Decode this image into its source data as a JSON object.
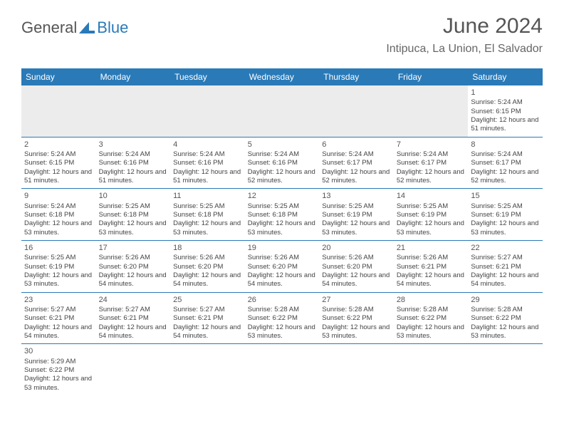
{
  "logo": {
    "general": "General",
    "blue": "Blue",
    "shape_color": "#2a7ab8"
  },
  "title": "June 2024",
  "subtitle": "Intipuca, La Union, El Salvador",
  "colors": {
    "header_bg": "#2a7ab8",
    "header_text": "#ffffff",
    "body_text": "#444444",
    "row_sep": "#2a7ab8",
    "empty_bg": "#ececec"
  },
  "day_headers": [
    "Sunday",
    "Monday",
    "Tuesday",
    "Wednesday",
    "Thursday",
    "Friday",
    "Saturday"
  ],
  "weeks": [
    [
      null,
      null,
      null,
      null,
      null,
      null,
      {
        "n": "1",
        "sr": "5:24 AM",
        "ss": "6:15 PM",
        "dl": "12 hours and 51 minutes."
      }
    ],
    [
      {
        "n": "2",
        "sr": "5:24 AM",
        "ss": "6:15 PM",
        "dl": "12 hours and 51 minutes."
      },
      {
        "n": "3",
        "sr": "5:24 AM",
        "ss": "6:16 PM",
        "dl": "12 hours and 51 minutes."
      },
      {
        "n": "4",
        "sr": "5:24 AM",
        "ss": "6:16 PM",
        "dl": "12 hours and 51 minutes."
      },
      {
        "n": "5",
        "sr": "5:24 AM",
        "ss": "6:16 PM",
        "dl": "12 hours and 52 minutes."
      },
      {
        "n": "6",
        "sr": "5:24 AM",
        "ss": "6:17 PM",
        "dl": "12 hours and 52 minutes."
      },
      {
        "n": "7",
        "sr": "5:24 AM",
        "ss": "6:17 PM",
        "dl": "12 hours and 52 minutes."
      },
      {
        "n": "8",
        "sr": "5:24 AM",
        "ss": "6:17 PM",
        "dl": "12 hours and 52 minutes."
      }
    ],
    [
      {
        "n": "9",
        "sr": "5:24 AM",
        "ss": "6:18 PM",
        "dl": "12 hours and 53 minutes."
      },
      {
        "n": "10",
        "sr": "5:25 AM",
        "ss": "6:18 PM",
        "dl": "12 hours and 53 minutes."
      },
      {
        "n": "11",
        "sr": "5:25 AM",
        "ss": "6:18 PM",
        "dl": "12 hours and 53 minutes."
      },
      {
        "n": "12",
        "sr": "5:25 AM",
        "ss": "6:18 PM",
        "dl": "12 hours and 53 minutes."
      },
      {
        "n": "13",
        "sr": "5:25 AM",
        "ss": "6:19 PM",
        "dl": "12 hours and 53 minutes."
      },
      {
        "n": "14",
        "sr": "5:25 AM",
        "ss": "6:19 PM",
        "dl": "12 hours and 53 minutes."
      },
      {
        "n": "15",
        "sr": "5:25 AM",
        "ss": "6:19 PM",
        "dl": "12 hours and 53 minutes."
      }
    ],
    [
      {
        "n": "16",
        "sr": "5:25 AM",
        "ss": "6:19 PM",
        "dl": "12 hours and 53 minutes."
      },
      {
        "n": "17",
        "sr": "5:26 AM",
        "ss": "6:20 PM",
        "dl": "12 hours and 54 minutes."
      },
      {
        "n": "18",
        "sr": "5:26 AM",
        "ss": "6:20 PM",
        "dl": "12 hours and 54 minutes."
      },
      {
        "n": "19",
        "sr": "5:26 AM",
        "ss": "6:20 PM",
        "dl": "12 hours and 54 minutes."
      },
      {
        "n": "20",
        "sr": "5:26 AM",
        "ss": "6:20 PM",
        "dl": "12 hours and 54 minutes."
      },
      {
        "n": "21",
        "sr": "5:26 AM",
        "ss": "6:21 PM",
        "dl": "12 hours and 54 minutes."
      },
      {
        "n": "22",
        "sr": "5:27 AM",
        "ss": "6:21 PM",
        "dl": "12 hours and 54 minutes."
      }
    ],
    [
      {
        "n": "23",
        "sr": "5:27 AM",
        "ss": "6:21 PM",
        "dl": "12 hours and 54 minutes."
      },
      {
        "n": "24",
        "sr": "5:27 AM",
        "ss": "6:21 PM",
        "dl": "12 hours and 54 minutes."
      },
      {
        "n": "25",
        "sr": "5:27 AM",
        "ss": "6:21 PM",
        "dl": "12 hours and 54 minutes."
      },
      {
        "n": "26",
        "sr": "5:28 AM",
        "ss": "6:22 PM",
        "dl": "12 hours and 53 minutes."
      },
      {
        "n": "27",
        "sr": "5:28 AM",
        "ss": "6:22 PM",
        "dl": "12 hours and 53 minutes."
      },
      {
        "n": "28",
        "sr": "5:28 AM",
        "ss": "6:22 PM",
        "dl": "12 hours and 53 minutes."
      },
      {
        "n": "29",
        "sr": "5:28 AM",
        "ss": "6:22 PM",
        "dl": "12 hours and 53 minutes."
      }
    ],
    [
      {
        "n": "30",
        "sr": "5:29 AM",
        "ss": "6:22 PM",
        "dl": "12 hours and 53 minutes."
      },
      null,
      null,
      null,
      null,
      null,
      null
    ]
  ],
  "labels": {
    "sunrise": "Sunrise:",
    "sunset": "Sunset:",
    "daylight": "Daylight:"
  }
}
